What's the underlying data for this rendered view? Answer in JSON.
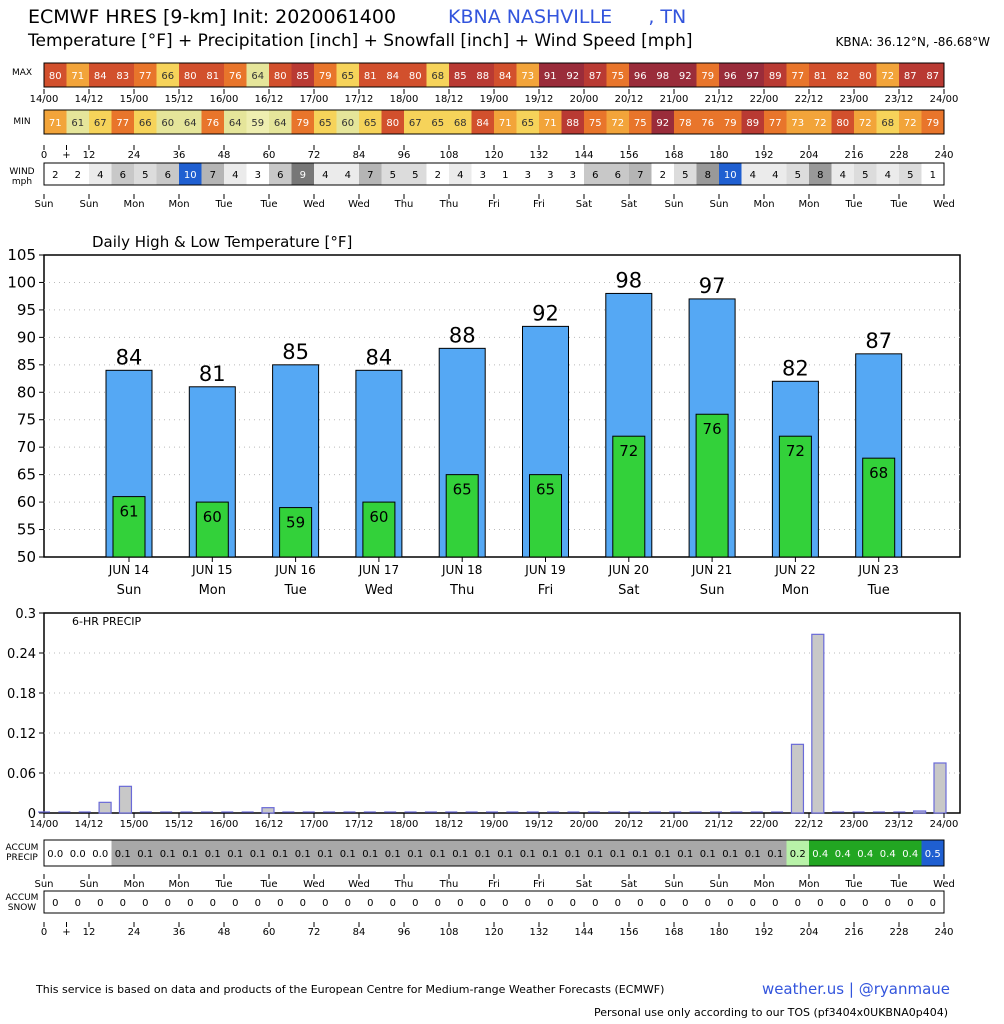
{
  "header": {
    "title": "ECMWF HRES [9-km] Init: 2020061400",
    "location": "KBNA NASHVILLE      , TN",
    "subtitle": "Temperature [°F] + Precipitation [inch] + Snowfall [inch] + Wind Speed [mph]",
    "coords": "KBNA: 36.12°N, -86.68°W"
  },
  "footer": {
    "left": "This service is based on data and products of the European Centre for Medium-range Weather Forecasts (ECMWF)",
    "brand": "weather.us | @ryanmaue",
    "tos": "Personal use only according to our TOS (pf3404x0UKBNA0p404)"
  },
  "strips": {
    "max_label": "MAX",
    "min_label": "MIN",
    "wind_label": "WIND\nmph",
    "accum_precip_label": "ACCUM\nPRECIP",
    "accum_snow_label": "ACCUM\nSNOW",
    "date_ticks": [
      "14/00",
      "14/12",
      "15/00",
      "15/12",
      "16/00",
      "16/12",
      "17/00",
      "17/12",
      "18/00",
      "18/12",
      "19/00",
      "19/12",
      "20/00",
      "20/12",
      "21/00",
      "21/12",
      "22/00",
      "22/12",
      "23/00",
      "23/12",
      "24/00"
    ],
    "hour_ticks": [
      "0",
      "+",
      "12",
      "24",
      "36",
      "48",
      "60",
      "72",
      "84",
      "96",
      "108",
      "120",
      "132",
      "144",
      "156",
      "168",
      "180",
      "192",
      "204",
      "216",
      "228",
      "240"
    ],
    "day_ticks": [
      "Sun",
      "Sun",
      "Mon",
      "Mon",
      "Tue",
      "Tue",
      "Wed",
      "Wed",
      "Thu",
      "Thu",
      "Fri",
      "Fri",
      "Sat",
      "Sat",
      "Sun",
      "Sun",
      "Mon",
      "Mon",
      "Tue",
      "Tue",
      "Wed"
    ],
    "max_values": [
      80,
      71,
      84,
      83,
      77,
      66,
      80,
      81,
      76,
      64,
      80,
      85,
      79,
      65,
      81,
      84,
      80,
      68,
      85,
      88,
      84,
      73,
      91,
      92,
      87,
      75,
      96,
      98,
      92,
      79,
      96,
      97,
      89,
      77,
      81,
      82,
      80,
      72,
      87,
      87
    ],
    "min_values": [
      71,
      61,
      67,
      77,
      66,
      60,
      64,
      76,
      64,
      59,
      64,
      79,
      65,
      60,
      65,
      80,
      67,
      65,
      68,
      84,
      71,
      65,
      71,
      88,
      75,
      72,
      75,
      92,
      78,
      76,
      79,
      89,
      77,
      73,
      72,
      80,
      72,
      68,
      72,
      79
    ],
    "wind_values": [
      2,
      2,
      4,
      6,
      5,
      6,
      10,
      7,
      4,
      3,
      6,
      9,
      4,
      4,
      7,
      5,
      5,
      2,
      4,
      3,
      1,
      3,
      3,
      3,
      6,
      6,
      7,
      2,
      5,
      8,
      10,
      4,
      4,
      5,
      8,
      4,
      5,
      4,
      5,
      1
    ],
    "accum_precip": [
      "0.0",
      "0.0",
      "0.0",
      "0.1",
      "0.1",
      "0.1",
      "0.1",
      "0.1",
      "0.1",
      "0.1",
      "0.1",
      "0.1",
      "0.1",
      "0.1",
      "0.1",
      "0.1",
      "0.1",
      "0.1",
      "0.1",
      "0.1",
      "0.1",
      "0.1",
      "0.1",
      "0.1",
      "0.1",
      "0.1",
      "0.1",
      "0.1",
      "0.1",
      "0.1",
      "0.1",
      "0.1",
      "0.1",
      "0.2",
      "0.4",
      "0.4",
      "0.4",
      "0.4",
      "0.4",
      "0.5"
    ],
    "accum_snow": [
      "0",
      "0",
      "0",
      "0",
      "0",
      "0",
      "0",
      "0",
      "0",
      "0",
      "0",
      "0",
      "0",
      "0",
      "0",
      "0",
      "0",
      "0",
      "0",
      "0",
      "0",
      "0",
      "0",
      "0",
      "0",
      "0",
      "0",
      "0",
      "0",
      "0",
      "0",
      "0",
      "0",
      "0",
      "0",
      "0",
      "0",
      "0",
      "0",
      "0"
    ]
  },
  "chart_data": [
    {
      "type": "bar",
      "title": "Daily High & Low Temperature [°F]",
      "categories": [
        "JUN 14",
        "JUN 15",
        "JUN 16",
        "JUN 17",
        "JUN 18",
        "JUN 19",
        "JUN 20",
        "JUN 21",
        "JUN 22",
        "JUN 23"
      ],
      "weekdays": [
        "Sun",
        "Mon",
        "Tue",
        "Wed",
        "Thu",
        "Fri",
        "Sat",
        "Sun",
        "Mon",
        "Tue"
      ],
      "series": [
        {
          "name": "",
          "values": [
            84,
            81,
            85,
            84,
            88,
            92,
            98,
            97,
            82,
            87
          ],
          "color": "#55a8f4"
        },
        {
          "name": "",
          "values": [
            61,
            60,
            59,
            60,
            65,
            65,
            72,
            76,
            72,
            68
          ],
          "color": "#33d13a"
        }
      ],
      "ylim": [
        50,
        105
      ],
      "yticks": [
        50,
        55,
        60,
        65,
        70,
        75,
        80,
        85,
        90,
        95,
        100,
        105
      ],
      "grid": true
    },
    {
      "type": "bar",
      "title": "6-HR PRECIP",
      "x_ticks": [
        "14/00",
        "14/12",
        "15/00",
        "15/12",
        "16/00",
        "16/12",
        "17/00",
        "17/12",
        "18/00",
        "18/12",
        "19/00",
        "19/12",
        "20/00",
        "20/12",
        "21/00",
        "21/12",
        "22/00",
        "22/12",
        "23/00",
        "23/12",
        "24/00"
      ],
      "values": [
        0,
        0,
        0,
        0.016,
        0.04,
        0,
        0,
        0,
        0,
        0,
        0,
        0.008,
        0,
        0,
        0,
        0,
        0,
        0,
        0,
        0,
        0,
        0,
        0,
        0,
        0,
        0,
        0,
        0,
        0,
        0,
        0,
        0,
        0,
        0,
        0,
        0,
        0,
        0.103,
        0.268,
        0,
        0,
        0,
        0,
        0.003,
        0.075
      ],
      "ylim": [
        0,
        0.3
      ],
      "yticks": [
        "0",
        "0.06",
        "0.12",
        "0.18",
        "0.24",
        "0.3"
      ],
      "color": "#c8c8c8",
      "edge_color": "#6a6ad8",
      "grid": true
    }
  ]
}
